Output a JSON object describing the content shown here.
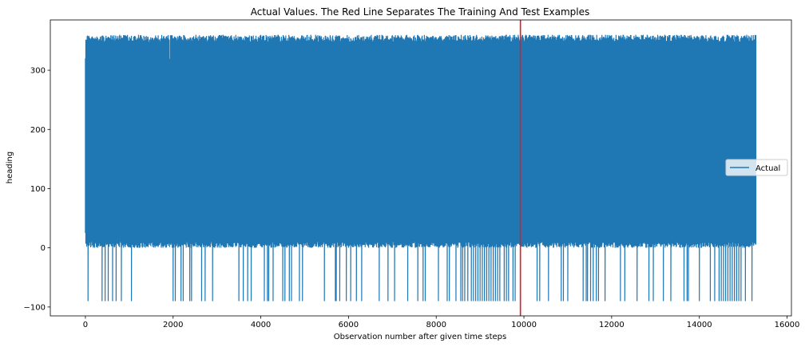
{
  "chart_data": {
    "type": "line",
    "title": "Actual Values. The Red Line Separates The Training And Test Examples",
    "xlabel": "Observation number after given time steps",
    "ylabel": "heading",
    "xlim": [
      -800,
      16100
    ],
    "ylim": [
      -115,
      385
    ],
    "xticks": [
      0,
      2000,
      4000,
      6000,
      8000,
      10000,
      12000,
      14000,
      16000
    ],
    "xtick_labels": [
      "0",
      "2000",
      "4000",
      "6000",
      "8000",
      "10000",
      "12000",
      "14000",
      "16000"
    ],
    "yticks": [
      -100,
      0,
      100,
      200,
      300
    ],
    "ytick_labels": [
      "−100",
      "0",
      "100",
      "200",
      "300"
    ],
    "grid": false,
    "legend": {
      "position": "center-right",
      "entries": [
        "Actual"
      ]
    },
    "series": [
      {
        "name": "Actual",
        "color": "#1f77b4",
        "x_start": 0,
        "x_end": 15290,
        "typical_range": [
          0,
          360
        ],
        "dips_to": -90,
        "dip_x": [
          60,
          380,
          450,
          520,
          620,
          700,
          820,
          1050,
          2000,
          2050,
          2180,
          2230,
          2380,
          2420,
          2650,
          2730,
          2900,
          3500,
          3600,
          3700,
          3780,
          4080,
          4150,
          4180,
          4280,
          4500,
          4550,
          4650,
          4700,
          4880,
          4950,
          5450,
          5700,
          5720,
          5800,
          5950,
          6050,
          6180,
          6300,
          6700,
          6900,
          7050,
          7350,
          7580,
          7700,
          7750,
          8050,
          8250,
          8300,
          8450,
          8560,
          8600,
          8650,
          8720,
          8800,
          8850,
          8900,
          8950,
          9000,
          9050,
          9100,
          9150,
          9200,
          9250,
          9300,
          9350,
          9400,
          9450,
          9550,
          9600,
          9650,
          9750,
          9800,
          10300,
          10360,
          10560,
          10850,
          10900,
          11000,
          11350,
          11420,
          11450,
          11520,
          11580,
          11650,
          11700,
          11850,
          12200,
          12300,
          12580,
          12850,
          12950,
          13180,
          13350,
          13650,
          13720,
          13750,
          14000,
          14250,
          14350,
          14450,
          14500,
          14550,
          14600,
          14650,
          14700,
          14750,
          14800,
          14850,
          14900,
          14950,
          15050,
          15200
        ]
      }
    ],
    "separator": {
      "x": 9920,
      "color": "#e41a1c"
    }
  }
}
